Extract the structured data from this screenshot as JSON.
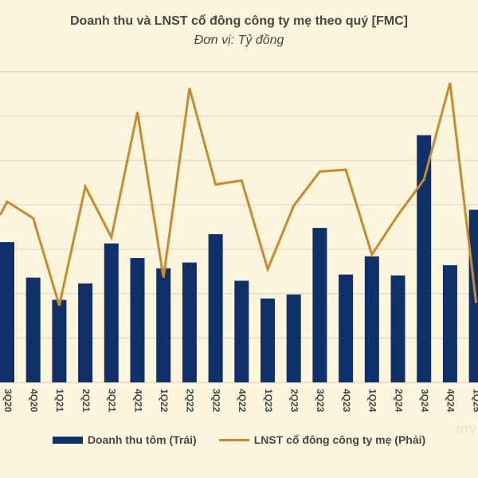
{
  "chart_data": {
    "type": "bar+line",
    "title": "Doanh thu và LNST cổ đông công ty mẹ theo quý [FMC]",
    "subtitle": "Đơn vị: Tỷ đồng",
    "categories": [
      "3Q20",
      "4Q20",
      "1Q21",
      "2Q21",
      "3Q21",
      "4Q21",
      "1Q22",
      "2Q22",
      "3Q22",
      "4Q22",
      "1Q23",
      "2Q23",
      "3Q23",
      "4Q23",
      "1Q24",
      "2Q24",
      "3Q24",
      "4Q24",
      "1Q25"
    ],
    "series": [
      {
        "name": "Doanh thu tôm (Trái)",
        "kind": "bar",
        "axis": "left",
        "color": "#0f3068",
        "values": [
          3.16,
          2.36,
          1.86,
          2.23,
          3.13,
          2.8,
          2.57,
          2.7,
          3.34,
          2.29,
          1.89,
          1.98,
          3.48,
          2.43,
          2.84,
          2.41,
          5.57,
          2.64,
          3.89
        ]
      },
      {
        "name": "LNST cổ đông công ty mẹ (Phải)",
        "kind": "line",
        "axis": "right",
        "color": "#c98a2e",
        "values": [
          4.07,
          3.7,
          1.73,
          4.41,
          3.27,
          6.09,
          2.36,
          6.63,
          4.46,
          4.55,
          2.55,
          3.98,
          4.75,
          4.79,
          2.88,
          3.77,
          4.57,
          6.75,
          1.79
        ]
      }
    ],
    "value_note_units": "relative gridline units (no axis tick labels shown)",
    "ylim": [
      0,
      7
    ],
    "grid": true,
    "legend_position": "bottom",
    "background": "#fdf6dc"
  },
  "watermark": "inv"
}
